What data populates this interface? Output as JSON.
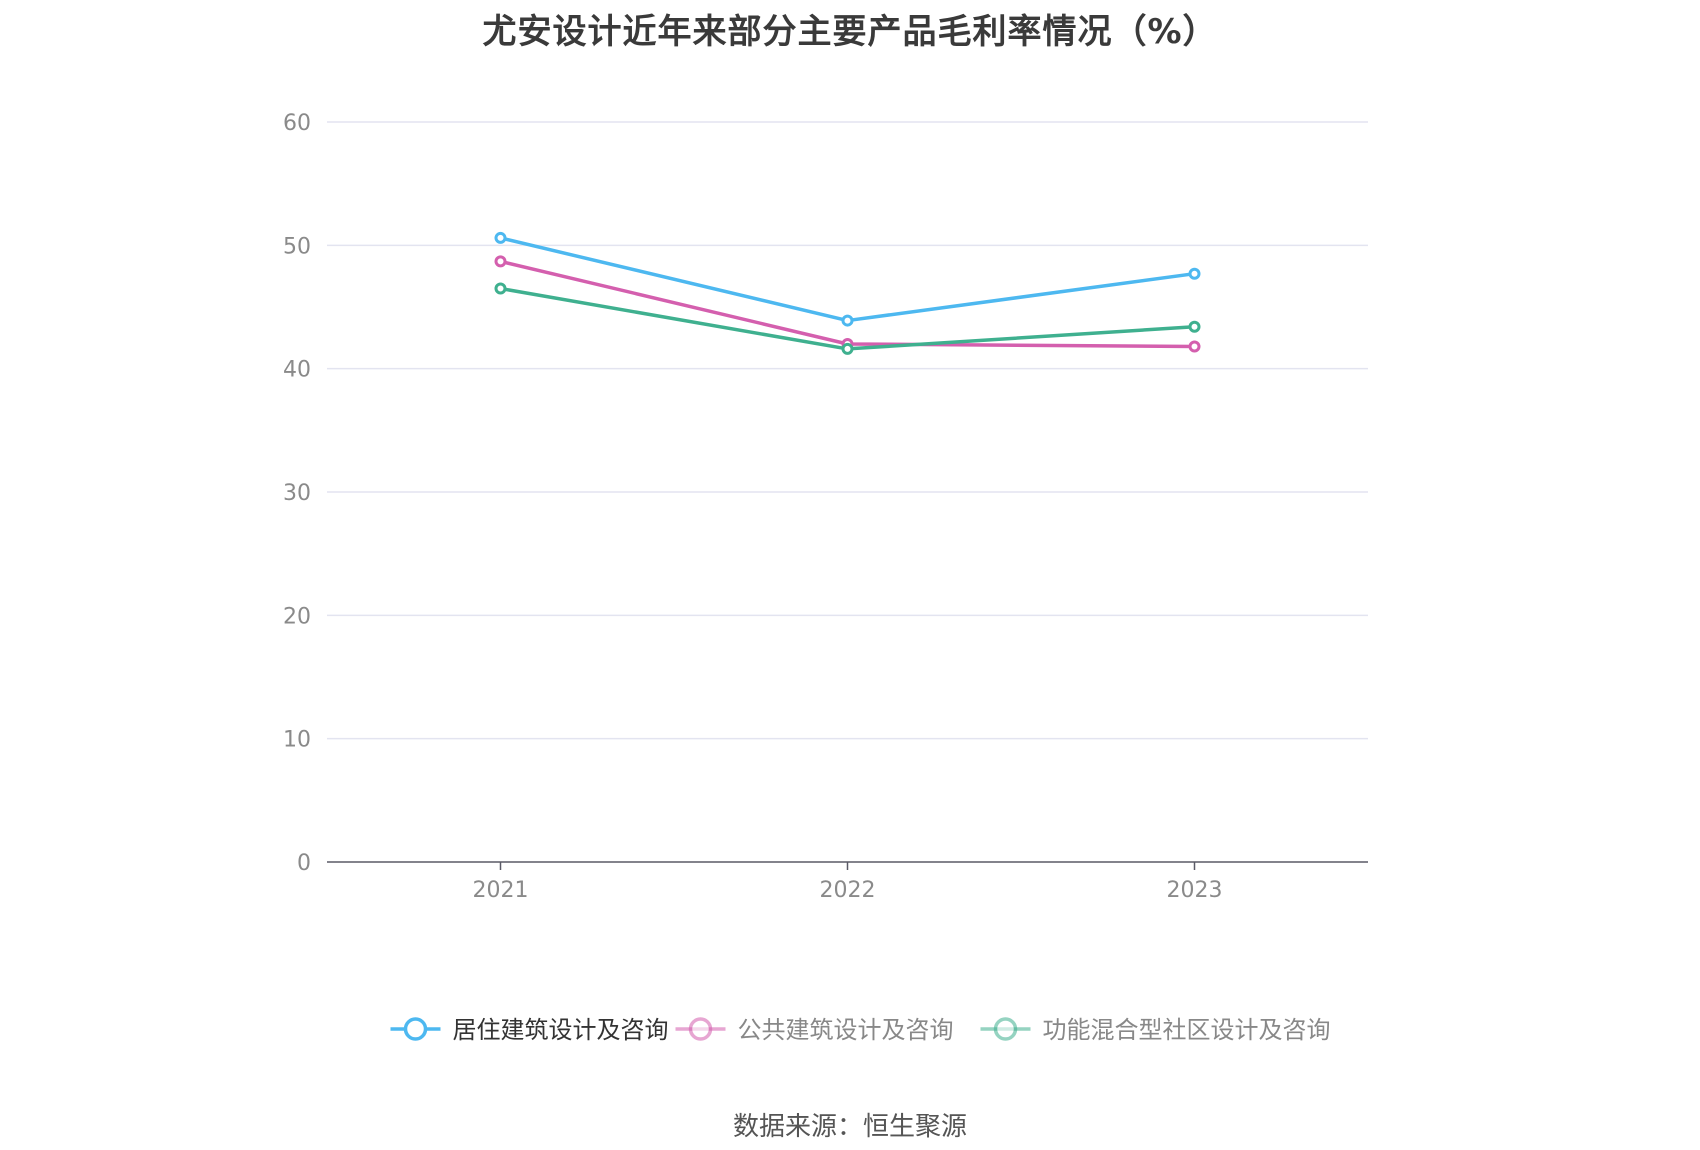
{
  "chart_data": {
    "type": "line",
    "title": "尤安设计近年来部分主要产品毛利率情况（%）",
    "x": [
      "2021",
      "2022",
      "2023"
    ],
    "ylim": [
      0,
      60
    ],
    "yticks": [
      0,
      10,
      20,
      30,
      40,
      50,
      60
    ],
    "grid": true,
    "legend_position": "bottom",
    "series": [
      {
        "name": "居住建筑设计及咨询",
        "color": "#4db8f0",
        "values": [
          50.6,
          43.9,
          47.7
        ]
      },
      {
        "name": "公共建筑设计及咨询",
        "color": "#d45fae",
        "values": [
          48.7,
          42.0,
          41.8
        ]
      },
      {
        "name": "功能混合型社区设计及咨询",
        "color": "#3fb08f",
        "values": [
          46.5,
          41.6,
          43.4
        ]
      }
    ],
    "legend_label_colors": [
      "#333333",
      "#888888",
      "#888888"
    ],
    "colors": {
      "grid": "#e3e4f0",
      "axis": "#5a5a66",
      "tick_text": "#8a8a8a"
    }
  },
  "source_note": "数据来源：恒生聚源"
}
